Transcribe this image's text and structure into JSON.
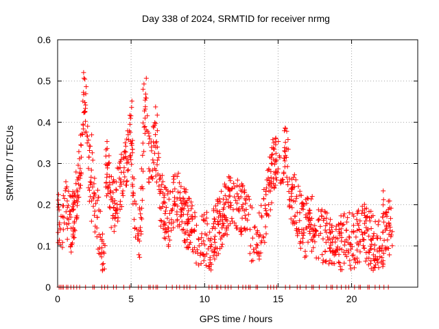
{
  "chart_data": {
    "type": "scatter",
    "title": "Day 338 of 2024, SRMTID for receiver nrmg",
    "xlabel": "GPS time / hours",
    "ylabel": "SRMTID / TECUs",
    "xlim": [
      0,
      24.5
    ],
    "ylim": [
      0,
      0.6
    ],
    "x_ticks": [
      0,
      5,
      10,
      15,
      20
    ],
    "y_ticks": [
      0,
      0.1,
      0.2,
      0.3,
      0.4,
      0.5,
      0.6
    ],
    "x_tick_labels": [
      "0",
      "5",
      "10",
      "15",
      "20"
    ],
    "y_tick_labels": [
      "0",
      "0.1",
      "0.2",
      "0.3",
      "0.4",
      "0.5",
      "0.6"
    ],
    "grid": true,
    "marker": "+",
    "marker_color": "#ff0000",
    "series_name": "SRMTID",
    "envelope": {
      "x": [
        0,
        0.3,
        0.6,
        0.9,
        1.2,
        1.5,
        1.7,
        1.8,
        1.9,
        2.1,
        2.3,
        2.6,
        2.9,
        3.2,
        3.4,
        3.6,
        3.9,
        4.2,
        4.5,
        4.8,
        5.0,
        5.2,
        5.4,
        5.6,
        5.8,
        6.0,
        6.2,
        6.4,
        6.6,
        6.8,
        7.0,
        7.3,
        7.6,
        8.0,
        8.4,
        8.8,
        9.2,
        9.6,
        10.0,
        10.4,
        10.8,
        11.2,
        11.6,
        12.0,
        12.4,
        12.8,
        13.2,
        13.6,
        14.0,
        14.4,
        14.7,
        15.0,
        15.3,
        15.6,
        15.9,
        16.2,
        16.5,
        16.8,
        17.2,
        17.6,
        18.0,
        18.4,
        18.8,
        19.2,
        19.6,
        20.0,
        20.4,
        20.8,
        21.2,
        21.6,
        22.0,
        22.4,
        22.8
      ],
      "y": [
        0.18,
        0.16,
        0.19,
        0.15,
        0.2,
        0.29,
        0.38,
        0.46,
        0.42,
        0.3,
        0.22,
        0.2,
        0.12,
        0.1,
        0.3,
        0.2,
        0.2,
        0.24,
        0.28,
        0.32,
        0.38,
        0.2,
        0.16,
        0.12,
        0.3,
        0.47,
        0.32,
        0.28,
        0.36,
        0.3,
        0.22,
        0.18,
        0.16,
        0.22,
        0.2,
        0.16,
        0.13,
        0.11,
        0.12,
        0.1,
        0.14,
        0.17,
        0.2,
        0.22,
        0.19,
        0.17,
        0.13,
        0.1,
        0.16,
        0.24,
        0.3,
        0.32,
        0.3,
        0.33,
        0.2,
        0.21,
        0.16,
        0.14,
        0.16,
        0.14,
        0.13,
        0.11,
        0.09,
        0.1,
        0.12,
        0.11,
        0.12,
        0.14,
        0.12,
        0.1,
        0.09,
        0.16,
        0.13
      ]
    },
    "peaks": [
      {
        "x": 1.85,
        "y": 0.53
      },
      {
        "x": 2.3,
        "y": 0.37
      },
      {
        "x": 3.3,
        "y": 0.36
      },
      {
        "x": 5.0,
        "y": 0.46
      },
      {
        "x": 5.9,
        "y": 0.5
      },
      {
        "x": 6.7,
        "y": 0.44
      },
      {
        "x": 15.4,
        "y": 0.36
      },
      {
        "x": 14.9,
        "y": 0.37
      },
      {
        "x": 22.2,
        "y": 0.24
      }
    ],
    "zero_points_x": [
      0.1,
      0.2,
      0.3,
      0.4,
      0.6,
      0.7,
      0.9,
      1.1,
      1.3,
      1.5,
      1.9,
      2.4,
      2.5,
      3.0,
      3.2,
      3.4,
      3.8,
      4.0,
      4.5,
      4.9,
      5.5,
      5.7,
      6.2,
      6.3,
      6.5,
      6.7,
      6.8,
      7.4,
      7.8,
      8.1,
      8.3,
      8.6,
      8.8,
      9.0,
      9.4,
      10.3,
      10.5,
      10.8,
      10.9,
      11.1,
      11.4,
      11.6,
      11.8,
      12.3,
      12.6,
      12.8,
      13.0,
      13.1,
      13.5,
      13.6,
      14.3,
      14.5,
      14.7,
      14.9,
      15.5,
      15.8,
      16.3,
      16.5,
      16.9,
      17.3,
      17.4,
      17.8,
      18.3,
      18.6,
      18.7,
      19.0,
      19.3,
      19.6,
      19.8,
      20.2,
      20.5,
      20.6,
      21.1,
      21.2,
      21.6,
      21.9,
      22.2,
      22.5
    ]
  }
}
